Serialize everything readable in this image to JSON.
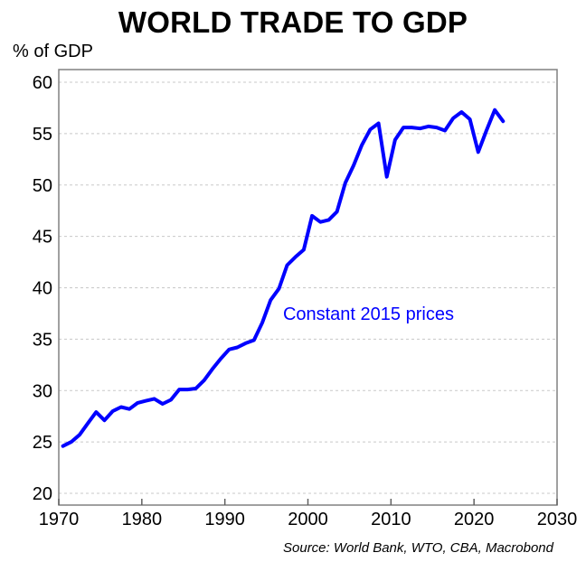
{
  "chart_data": {
    "type": "line",
    "title": "WORLD TRADE TO GDP",
    "ylabel": "% of GDP",
    "xlabel": "",
    "source": "Source: World Bank, WTO, CBA, Macrobond",
    "xlim": [
      1970,
      2030
    ],
    "ylim": [
      20,
      60
    ],
    "xticks": [
      1970,
      1980,
      1990,
      2000,
      2010,
      2020,
      2030
    ],
    "yticks": [
      20,
      25,
      30,
      35,
      40,
      45,
      50,
      55,
      60
    ],
    "grid": "horizontal dashed",
    "series": [
      {
        "name": "Constant 2015 prices",
        "color": "#0000ff",
        "x": [
          1970.5,
          1971.5,
          1972.5,
          1973.5,
          1974.5,
          1975.5,
          1976.5,
          1977.5,
          1978.5,
          1979.5,
          1980.5,
          1981.5,
          1982.5,
          1983.5,
          1984.5,
          1985.5,
          1986.5,
          1987.5,
          1988.5,
          1989.5,
          1990.5,
          1991.5,
          1992.5,
          1993.5,
          1994.5,
          1995.5,
          1996.5,
          1997.5,
          1998.5,
          1999.5,
          2000.5,
          2001.5,
          2002.5,
          2003.5,
          2004.5,
          2005.5,
          2006.5,
          2007.5,
          2008.5,
          2009.5,
          2010.5,
          2011.5,
          2012.5,
          2013.5,
          2014.5,
          2015.5,
          2016.5,
          2017.5,
          2018.5,
          2019.5,
          2020.5,
          2021.5,
          2022.5,
          2023.5
        ],
        "values": [
          24.6,
          25.0,
          25.7,
          26.8,
          27.9,
          27.1,
          28.0,
          28.4,
          28.2,
          28.8,
          29.0,
          29.2,
          28.7,
          29.1,
          30.1,
          30.1,
          30.2,
          31.0,
          32.1,
          33.1,
          34.0,
          34.2,
          34.6,
          34.9,
          36.6,
          38.8,
          39.9,
          42.2,
          43.0,
          43.7,
          47.0,
          46.4,
          46.6,
          47.4,
          50.2,
          51.9,
          53.9,
          55.4,
          56.0,
          50.8,
          54.4,
          55.6,
          55.6,
          55.5,
          55.7,
          55.6,
          55.3,
          56.5,
          57.1,
          56.4,
          53.2,
          55.3,
          57.3,
          56.2
        ]
      }
    ],
    "annotations": [
      {
        "text": "Constant 2015 prices",
        "x": 1997,
        "y": 37.5,
        "color": "#0000ff"
      }
    ]
  }
}
